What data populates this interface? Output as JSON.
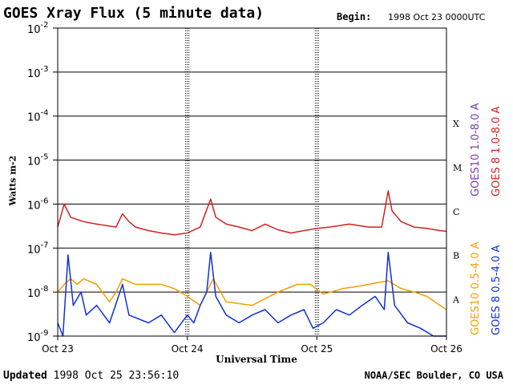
{
  "title": "GOES Xray Flux (5 minute data)",
  "begin_label": "Begin:",
  "begin_value": "1998 Oct 23 0000UTC",
  "updated_label": "Updated",
  "updated_value": "1998 Oct 25 23:56:10",
  "source": "NOAA/SEC Boulder, CO USA",
  "legend": {
    "goes10_long": {
      "text": "GOES10 1.0-8.0 A",
      "color": "#7a3ab0"
    },
    "goes8_long": {
      "text": "GOES 8 1.0-8.0 A",
      "color": "#d42020"
    },
    "goes10_short": {
      "text": "GOES10 0.5-4.0 A",
      "color": "#f2a000"
    },
    "goes8_short": {
      "text": "GOES 8 0.5-4.0 A",
      "color": "#1030d8"
    }
  },
  "chart_data": {
    "type": "line",
    "title": "GOES Xray Flux (5 minute data)",
    "xlabel": "Universal Time",
    "ylabel": "Watts m-2",
    "y_scale": "log",
    "ylim": [
      1e-09,
      0.01
    ],
    "y_ticks": [
      {
        "value": 0.01,
        "base": "10",
        "exp": "-2"
      },
      {
        "value": 0.001,
        "base": "10",
        "exp": "-3"
      },
      {
        "value": 0.0001,
        "base": "10",
        "exp": "-4"
      },
      {
        "value": 1e-05,
        "base": "10",
        "exp": "-5"
      },
      {
        "value": 1e-06,
        "base": "10",
        "exp": "-6"
      },
      {
        "value": 1e-07,
        "base": "10",
        "exp": "-7"
      },
      {
        "value": 1e-08,
        "base": "10",
        "exp": "-8"
      },
      {
        "value": 1e-09,
        "base": "10",
        "exp": "-9"
      }
    ],
    "x_ticks": [
      {
        "day": 0,
        "label": "Oct 23"
      },
      {
        "day": 1,
        "label": "Oct 24"
      },
      {
        "day": 2,
        "label": "Oct 25"
      },
      {
        "day": 3,
        "label": "Oct 26"
      }
    ],
    "xlim": [
      0,
      3
    ],
    "flare_classes": [
      {
        "label": "X",
        "value": 0.0001
      },
      {
        "label": "M",
        "value": 1e-05
      },
      {
        "label": "C",
        "value": 1e-06
      },
      {
        "label": "B",
        "value": 1e-07
      },
      {
        "label": "A",
        "value": 1e-08
      }
    ],
    "series": [
      {
        "name": "GOES 8 1.0-8.0 A",
        "color": "#d42020",
        "points": [
          [
            0.0,
            3e-07
          ],
          [
            0.05,
            1e-06
          ],
          [
            0.1,
            5e-07
          ],
          [
            0.2,
            4e-07
          ],
          [
            0.3,
            3.5e-07
          ],
          [
            0.45,
            3e-07
          ],
          [
            0.5,
            6e-07
          ],
          [
            0.55,
            4e-07
          ],
          [
            0.6,
            3e-07
          ],
          [
            0.7,
            2.5e-07
          ],
          [
            0.8,
            2.2e-07
          ],
          [
            0.9,
            2e-07
          ],
          [
            1.0,
            2.2e-07
          ],
          [
            1.1,
            3e-07
          ],
          [
            1.18,
            1.3e-06
          ],
          [
            1.22,
            5e-07
          ],
          [
            1.3,
            3.5e-07
          ],
          [
            1.4,
            3e-07
          ],
          [
            1.5,
            2.5e-07
          ],
          [
            1.6,
            3.5e-07
          ],
          [
            1.7,
            2.6e-07
          ],
          [
            1.8,
            2.2e-07
          ],
          [
            1.9,
            2.5e-07
          ],
          [
            2.0,
            2.8e-07
          ],
          [
            2.1,
            3e-07
          ],
          [
            2.25,
            3.5e-07
          ],
          [
            2.4,
            3e-07
          ],
          [
            2.5,
            3e-07
          ],
          [
            2.55,
            2e-06
          ],
          [
            2.58,
            7e-07
          ],
          [
            2.65,
            4e-07
          ],
          [
            2.75,
            3e-07
          ],
          [
            2.85,
            2.8e-07
          ],
          [
            2.95,
            2.5e-07
          ],
          [
            3.0,
            2.4e-07
          ]
        ]
      },
      {
        "name": "GOES10 0.5-4.0 A",
        "color": "#f2a000",
        "points": [
          [
            0.0,
            1e-08
          ],
          [
            0.05,
            1.5e-08
          ],
          [
            0.1,
            2e-08
          ],
          [
            0.15,
            1.5e-08
          ],
          [
            0.2,
            2e-08
          ],
          [
            0.3,
            1.5e-08
          ],
          [
            0.4,
            6e-09
          ],
          [
            0.45,
            1e-08
          ],
          [
            0.5,
            2e-08
          ],
          [
            0.6,
            1.5e-08
          ],
          [
            0.8,
            1.5e-08
          ],
          [
            0.9,
            1.2e-08
          ],
          [
            1.0,
            8e-09
          ],
          [
            1.1,
            5e-09
          ],
          [
            1.2,
            2e-08
          ],
          [
            1.3,
            6e-09
          ],
          [
            1.5,
            5e-09
          ],
          [
            1.7,
            1e-08
          ],
          [
            1.85,
            1.5e-08
          ],
          [
            1.95,
            1.5e-08
          ],
          [
            2.05,
            9e-09
          ],
          [
            2.2,
            1.2e-08
          ],
          [
            2.35,
            1.4e-08
          ],
          [
            2.45,
            1.6e-08
          ],
          [
            2.55,
            1.8e-08
          ],
          [
            2.65,
            1.2e-08
          ],
          [
            2.75,
            1e-08
          ],
          [
            2.85,
            8e-09
          ],
          [
            2.95,
            5e-09
          ],
          [
            3.0,
            4e-09
          ]
        ]
      },
      {
        "name": "GOES 8 0.5-4.0 A",
        "color": "#1030d8",
        "points": [
          [
            0.0,
            2e-09
          ],
          [
            0.04,
            1e-09
          ],
          [
            0.08,
            7e-08
          ],
          [
            0.12,
            5e-09
          ],
          [
            0.18,
            1e-08
          ],
          [
            0.22,
            3e-09
          ],
          [
            0.3,
            5e-09
          ],
          [
            0.4,
            2e-09
          ],
          [
            0.5,
            1.5e-08
          ],
          [
            0.55,
            3e-09
          ],
          [
            0.7,
            2e-09
          ],
          [
            0.8,
            3e-09
          ],
          [
            0.9,
            1.2e-09
          ],
          [
            1.0,
            3e-09
          ],
          [
            1.05,
            2e-09
          ],
          [
            1.1,
            5e-09
          ],
          [
            1.15,
            1e-08
          ],
          [
            1.18,
            8e-08
          ],
          [
            1.22,
            8e-09
          ],
          [
            1.3,
            3e-09
          ],
          [
            1.4,
            2e-09
          ],
          [
            1.5,
            3e-09
          ],
          [
            1.6,
            4e-09
          ],
          [
            1.7,
            2e-09
          ],
          [
            1.8,
            3e-09
          ],
          [
            1.9,
            4e-09
          ],
          [
            1.97,
            1.5e-09
          ],
          [
            2.05,
            2e-09
          ],
          [
            2.15,
            4e-09
          ],
          [
            2.25,
            3e-09
          ],
          [
            2.35,
            5e-09
          ],
          [
            2.45,
            8e-09
          ],
          [
            2.52,
            4e-09
          ],
          [
            2.55,
            8e-08
          ],
          [
            2.6,
            5e-09
          ],
          [
            2.7,
            2e-09
          ],
          [
            2.8,
            1.5e-09
          ],
          [
            2.9,
            1e-09
          ],
          [
            3.0,
            1e-09
          ]
        ]
      }
    ]
  }
}
